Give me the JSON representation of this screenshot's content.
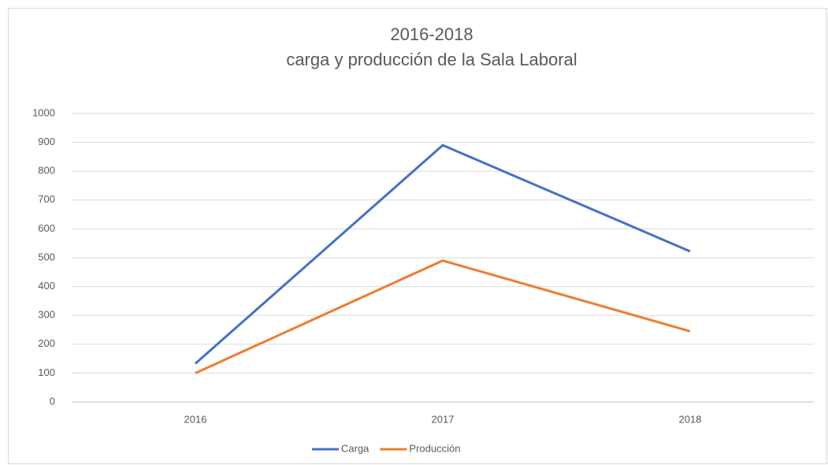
{
  "chart_data": {
    "type": "line",
    "title": "2016-2018",
    "subtitle": "carga y producción de la Sala Laboral",
    "categories": [
      "2016",
      "2017",
      "2018"
    ],
    "series": [
      {
        "name": "Carga",
        "color": "#4472c4",
        "values": [
          133,
          890,
          522
        ]
      },
      {
        "name": "Producción",
        "color": "#ed7d31",
        "values": [
          100,
          490,
          245
        ]
      }
    ],
    "ylim": [
      0,
      1000
    ],
    "yticks": [
      0,
      100,
      200,
      300,
      400,
      500,
      600,
      700,
      800,
      900,
      1000
    ],
    "grid": true,
    "legend": "bottom"
  }
}
